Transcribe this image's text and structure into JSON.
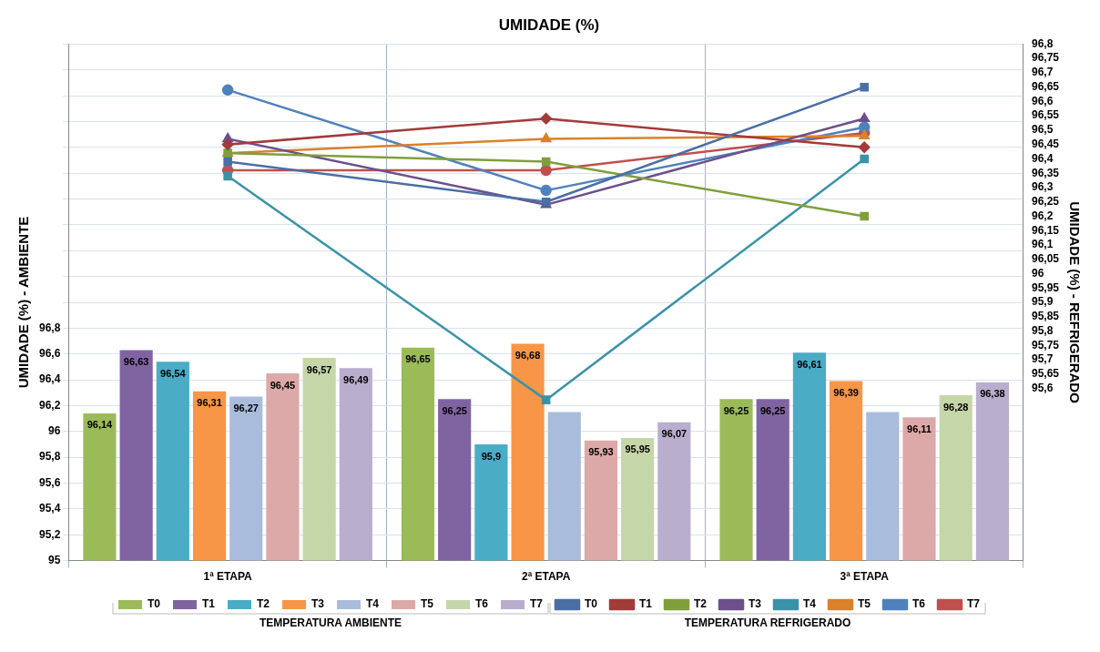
{
  "chart_data": {
    "type": "bar",
    "title": "UMIDADE (%)",
    "ylabel": "UMIDADE (%) - AMBIENTE",
    "y2label": "UMIDADE (%) - REFRIGERADO",
    "categories": [
      "1ª ETAPA",
      "2ª ETAPA",
      "3ª ETAPA"
    ],
    "ylim": [
      95,
      99
    ],
    "yticks": [
      {
        "value": 95,
        "label": "95"
      },
      {
        "value": 95.2,
        "label": "95,2"
      },
      {
        "value": 95.4,
        "label": "95,4"
      },
      {
        "value": 95.6,
        "label": "95,6"
      },
      {
        "value": 95.8,
        "label": "95,8"
      },
      {
        "value": 96,
        "label": "96"
      },
      {
        "value": 96.2,
        "label": "96,2"
      },
      {
        "value": 96.4,
        "label": "96,4"
      },
      {
        "value": 96.6,
        "label": "96,6"
      },
      {
        "value": 96.8,
        "label": "96,8"
      },
      {
        "value": 97,
        "label": null
      },
      {
        "value": 97.2,
        "label": null
      },
      {
        "value": 97.4,
        "label": null
      },
      {
        "value": 97.6,
        "label": null
      },
      {
        "value": 97.8,
        "label": null
      },
      {
        "value": 98,
        "label": null
      },
      {
        "value": 98.2,
        "label": null
      },
      {
        "value": 98.4,
        "label": null
      },
      {
        "value": 98.6,
        "label": null
      },
      {
        "value": 98.8,
        "label": null
      },
      {
        "value": 99,
        "label": null
      }
    ],
    "y2lim": [
      95,
      96.8
    ],
    "y2ticks": [
      {
        "value": 95.6,
        "label": "95,6"
      },
      {
        "value": 95.65,
        "label": "95,65"
      },
      {
        "value": 95.7,
        "label": "95,7"
      },
      {
        "value": 95.75,
        "label": "95,75"
      },
      {
        "value": 95.8,
        "label": "95,8"
      },
      {
        "value": 95.85,
        "label": "95,85"
      },
      {
        "value": 95.9,
        "label": "95,9"
      },
      {
        "value": 95.95,
        "label": "95,95"
      },
      {
        "value": 96,
        "label": "96"
      },
      {
        "value": 96.05,
        "label": "96,05"
      },
      {
        "value": 96.1,
        "label": "96,1"
      },
      {
        "value": 96.15,
        "label": "96,15"
      },
      {
        "value": 96.2,
        "label": "96,2"
      },
      {
        "value": 96.25,
        "label": "96,25"
      },
      {
        "value": 96.3,
        "label": "96,3"
      },
      {
        "value": 96.35,
        "label": "96,35"
      },
      {
        "value": 96.4,
        "label": "96,4"
      },
      {
        "value": 96.45,
        "label": "96,45"
      },
      {
        "value": 96.5,
        "label": "96,5"
      },
      {
        "value": 96.55,
        "label": "96,55"
      },
      {
        "value": 96.6,
        "label": "96,6"
      },
      {
        "value": 96.65,
        "label": "96,65"
      },
      {
        "value": 96.7,
        "label": "96,7"
      },
      {
        "value": 96.75,
        "label": "96,75"
      },
      {
        "value": 96.8,
        "label": "96,8"
      }
    ],
    "grid": true,
    "legend": "bottom",
    "annotations": [
      "TEMPERATURA AMBIENTE",
      "TEMPERATURA REFRIGERADO"
    ],
    "series": [
      {
        "name": "T0",
        "color": "#9bbb59",
        "values": [
          96.14,
          96.65,
          96.25
        ],
        "value_labels": [
          "96,14",
          "96,65",
          "96,25"
        ]
      },
      {
        "name": "T1",
        "color": "#8064a2",
        "values": [
          96.63,
          96.25,
          96.25
        ],
        "value_labels": [
          "96,63",
          "96,25",
          "96,25"
        ]
      },
      {
        "name": "T2",
        "color": "#4bacc6",
        "values": [
          96.54,
          95.9,
          96.61
        ],
        "value_labels": [
          "96,54",
          "95,9",
          "96,61"
        ]
      },
      {
        "name": "T3",
        "color": "#f79646",
        "values": [
          96.31,
          96.68,
          96.39
        ],
        "value_labels": [
          "96,31",
          "96,68",
          "96,39"
        ]
      },
      {
        "name": "T4",
        "color": "#a9bcdc",
        "values": [
          96.27,
          96.15,
          96.15
        ],
        "value_labels": [
          "96,27",
          null,
          null
        ]
      },
      {
        "name": "T5",
        "color": "#dca9a8",
        "values": [
          96.45,
          95.93,
          96.11
        ],
        "value_labels": [
          "96,45",
          "95,93",
          "96,11"
        ]
      },
      {
        "name": "T6",
        "color": "#c5d6a9",
        "values": [
          96.57,
          95.95,
          96.28
        ],
        "value_labels": [
          "96,57",
          "95,95",
          "96,28"
        ]
      },
      {
        "name": "T7",
        "color": "#b9aecd",
        "values": [
          96.49,
          96.07,
          96.38
        ],
        "value_labels": [
          "96,49",
          "96,07",
          "96,38"
        ]
      },
      {
        "name": "T0",
        "type": "line",
        "axis": "y2",
        "marker": "square",
        "color": "#4a6fa5",
        "values": [
          96.39,
          96.25,
          96.65
        ]
      },
      {
        "name": "T1",
        "type": "line",
        "axis": "y2",
        "marker": "diamond",
        "color": "#a23b3a",
        "values": [
          96.45,
          96.54,
          96.44
        ]
      },
      {
        "name": "T2",
        "type": "line",
        "axis": "y2",
        "marker": "square",
        "color": "#7f9f3b",
        "values": [
          96.42,
          96.39,
          96.2
        ]
      },
      {
        "name": "T3",
        "type": "line",
        "axis": "y2",
        "marker": "triangle",
        "color": "#6d4f8c",
        "values": [
          96.47,
          96.24,
          96.54
        ]
      },
      {
        "name": "T4",
        "type": "line",
        "axis": "y2",
        "marker": "square",
        "color": "#3a92a8",
        "values": [
          96.34,
          95.56,
          96.4
        ]
      },
      {
        "name": "T5",
        "type": "line",
        "axis": "y2",
        "marker": "triangle",
        "color": "#d9822b",
        "values": [
          96.42,
          96.47,
          96.48
        ]
      },
      {
        "name": "T6",
        "type": "line",
        "axis": "y2",
        "marker": "circle",
        "color": "#4f81bd",
        "values": [
          96.64,
          96.29,
          96.51
        ]
      },
      {
        "name": "T7",
        "type": "line",
        "axis": "y2",
        "marker": "circle",
        "color": "#c0504d",
        "values": [
          96.36,
          96.36,
          96.49
        ]
      }
    ]
  }
}
